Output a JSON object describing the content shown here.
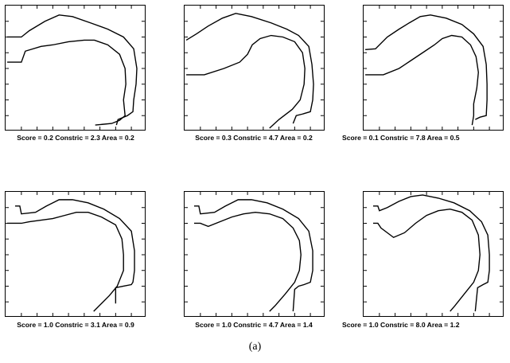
{
  "figure_label": "(a)",
  "panels": [
    {
      "caption": "Score = 0.2  Constric = 2.3  Area = 0.2"
    },
    {
      "caption": "Score = 0.3  Constric = 4.7  Area = 0.2"
    },
    {
      "caption": "Score = 0.1  Constric = 7.8  Area = 0.5"
    },
    {
      "caption": "Score = 1.0  Constric = 3.1  Area = 0.9"
    },
    {
      "caption": "Score = 1.0  Constric = 4.7  Area = 1.4"
    },
    {
      "caption": "Score = 1.0  Constric = 8.0  Area = 1.2"
    }
  ]
}
